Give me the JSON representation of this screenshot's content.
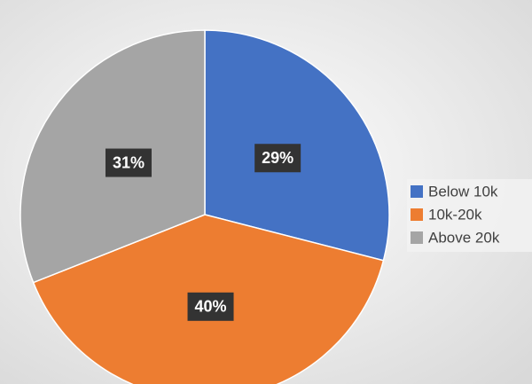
{
  "chart_data": {
    "type": "pie",
    "categories": [
      "Below 10k",
      "10k-20k",
      "Above 20k"
    ],
    "values": [
      29,
      40,
      31
    ],
    "value_labels": [
      "29%",
      "40%",
      "31%"
    ],
    "colors": [
      "#4472c4",
      "#ed7d31",
      "#a5a5a5"
    ],
    "legend": "right"
  }
}
